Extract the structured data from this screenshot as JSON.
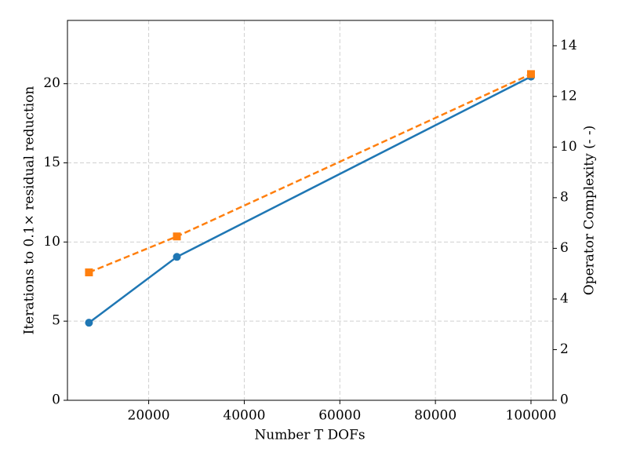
{
  "chart_data": {
    "type": "line",
    "xlabel": "Number T DOFs",
    "ylabel": "Iterations to 0.1× residual reduction",
    "y2label": "Operator Complexity (- -)",
    "x": [
      7500,
      25900,
      100000
    ],
    "series": [
      {
        "color": "#1f77b4",
        "values": [
          4.9,
          9.06,
          20.45
        ],
        "marker": "circle",
        "dash": false
      },
      {
        "color": "#ff7f0e",
        "values": [
          5.05,
          6.47,
          12.88
        ],
        "marker": "square",
        "dash": true,
        "axis": "y2"
      }
    ],
    "xlim": [
      3000,
      104600
    ],
    "xticks": [
      20000,
      40000,
      60000,
      80000,
      100000
    ],
    "ylim": [
      0,
      24
    ],
    "yticks": [
      0,
      5,
      10,
      15,
      20
    ],
    "y2lim": [
      0,
      15
    ],
    "y2ticks": [
      0,
      2,
      4,
      6,
      8,
      10,
      12,
      14
    ],
    "grid": true
  }
}
